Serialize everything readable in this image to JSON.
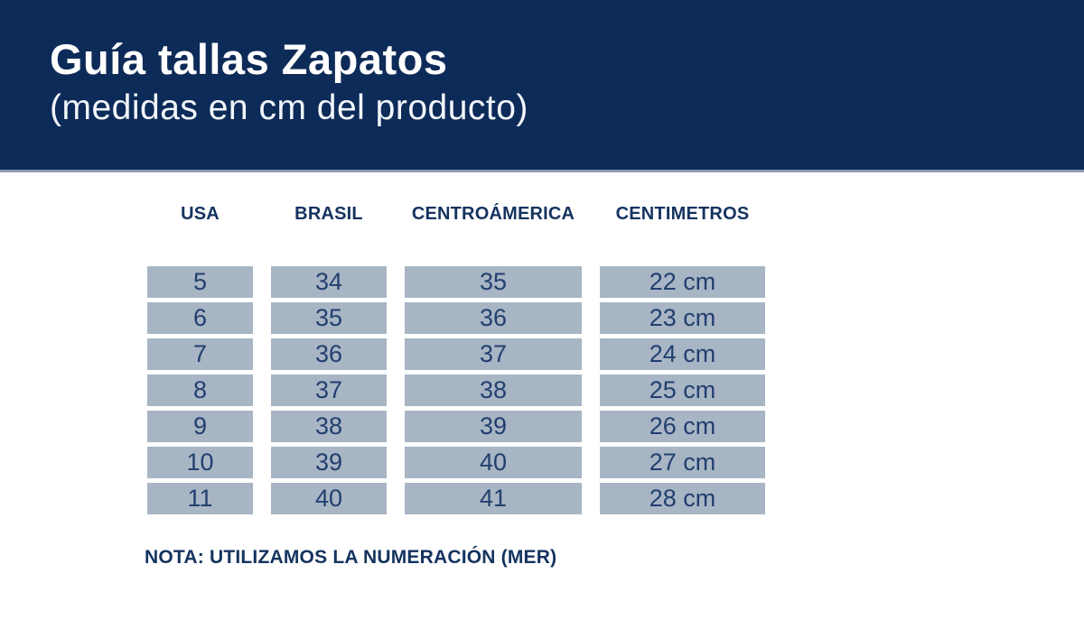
{
  "header": {
    "title": "Guía tallas Zapatos",
    "subtitle": "(medidas en cm del producto)"
  },
  "table": {
    "columns": [
      "USA",
      "BRASIL",
      "CENTROÁMERICA",
      "CENTIMETROS"
    ],
    "rows": [
      [
        "5",
        "34",
        "35",
        "22 cm"
      ],
      [
        "6",
        "35",
        "36",
        "23 cm"
      ],
      [
        "7",
        "36",
        "37",
        "24 cm"
      ],
      [
        "8",
        "37",
        "38",
        "25 cm"
      ],
      [
        "9",
        "38",
        "39",
        "26 cm"
      ],
      [
        "10",
        "39",
        "40",
        "27 cm"
      ],
      [
        "11",
        "40",
        "41",
        "28 cm"
      ]
    ]
  },
  "note": "NOTA: UTILIZAMOS LA NUMERACIÓN (MER)",
  "colors": {
    "band": "#0d2b58",
    "cell_bg": "#a8b5c4",
    "text_navy": "#14335f",
    "cell_text": "#21406f"
  }
}
